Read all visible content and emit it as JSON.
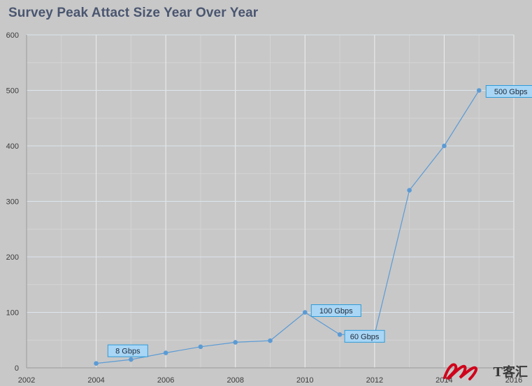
{
  "page": {
    "title": "Survey Peak Attact Size Year Over Year",
    "watermark": "T客汇"
  },
  "colors": {
    "background": "#c8c8c8",
    "grid": "#ececec",
    "series": "#5b9bd5",
    "label_fill": "#a9d6f5",
    "label_border": "#2e9bd8",
    "watermark": "#d0021b"
  },
  "chart_data": {
    "type": "scatter",
    "title": "Survey Peak Attact Size Year Over Year",
    "xlabel": "",
    "ylabel": "",
    "xlim": [
      2002,
      2016
    ],
    "ylim": [
      0,
      600
    ],
    "xticks": [
      2002,
      2004,
      2006,
      2008,
      2010,
      2012,
      2014,
      2016
    ],
    "yticks": [
      0,
      100,
      200,
      300,
      400,
      500,
      600
    ],
    "grid": true,
    "legend": "none",
    "series": [
      {
        "x": [
          2004,
          2005,
          2006,
          2007,
          2008,
          2009,
          2010,
          2011,
          2012,
          2013,
          2014,
          2015
        ],
        "y": [
          8,
          15,
          27,
          38,
          46,
          49,
          100,
          60,
          60,
          320,
          400,
          500
        ]
      }
    ],
    "annotations": [
      {
        "text": "8 Gbps",
        "x": 2005,
        "y": 15
      },
      {
        "text": "100 Gbps",
        "x": 2010,
        "y": 100
      },
      {
        "text": "60 Gbps",
        "x": 2011,
        "y": 60
      },
      {
        "text": "500 Gbps",
        "x": 2015,
        "y": 500
      }
    ]
  }
}
